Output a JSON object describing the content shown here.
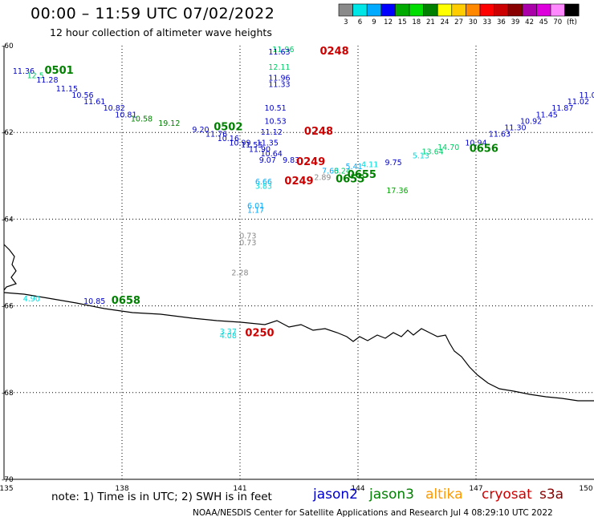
{
  "header": {
    "title": "00:00 – 11:59 UTC 07/02/2022",
    "subtitle": "12 hour collection of altimeter wave heights"
  },
  "legend": {
    "colors": [
      "#8a8a8a",
      "#00e5e5",
      "#00aaff",
      "#0000ff",
      "#00aa00",
      "#00dd00",
      "#008000",
      "#ffff00",
      "#ffcc00",
      "#ff8800",
      "#ff0000",
      "#cc0000",
      "#880000",
      "#aa00aa",
      "#dd00dd",
      "#ff88ff",
      "#000000"
    ],
    "labels": [
      "3",
      "6",
      "9",
      "12",
      "15",
      "18",
      "21",
      "24",
      "27",
      "30",
      "33",
      "36",
      "39",
      "42",
      "45",
      "70",
      "(ft)"
    ]
  },
  "footer": {
    "note": "note: 1) Time is in UTC; 2) SWH is in feet",
    "satellites": [
      {
        "name": "jason2",
        "color": "#0000cc"
      },
      {
        "name": "jason3",
        "color": "#008000"
      },
      {
        "name": "altika",
        "color": "#ff9900"
      },
      {
        "name": "cryosat",
        "color": "#cc0000"
      },
      {
        "name": "s3a",
        "color": "#880000"
      }
    ],
    "credit": "NOAA/NESDIS Center for Satellite Applications and Research  Jul  4 08:29:10 UTC 2022"
  },
  "map": {
    "lon_ticks": [
      "135",
      "138",
      "141",
      "144",
      "147",
      "150"
    ],
    "lat_ticks": [
      "-60",
      "-62",
      "-64",
      "-66",
      "-68",
      "-70"
    ],
    "lon_range": [
      135,
      150
    ],
    "lat_range": [
      -70,
      -60
    ]
  },
  "chart_data": {
    "type": "scatter",
    "title": "00:00 – 11:59 UTC 07/02/2022",
    "subtitle": "12 hour collection of altimeter wave heights",
    "unit": "ft",
    "points": [
      {
        "lon": 135.5,
        "lat": -60.65,
        "text": "11.36",
        "color": "#0000cc"
      },
      {
        "lon": 135.8,
        "lat": -60.75,
        "text": "12.5",
        "color": "#00cc66"
      },
      {
        "lon": 136.4,
        "lat": -60.65,
        "text": "0501",
        "color": "#008000",
        "time": true
      },
      {
        "lon": 136.1,
        "lat": -60.85,
        "text": "11.28",
        "color": "#0000cc"
      },
      {
        "lon": 136.6,
        "lat": -61.05,
        "text": "11.15",
        "color": "#0000cc"
      },
      {
        "lon": 137.0,
        "lat": -61.2,
        "text": "10.56",
        "color": "#0000cc"
      },
      {
        "lon": 137.3,
        "lat": -61.35,
        "text": "11.61",
        "color": "#0000cc"
      },
      {
        "lon": 137.8,
        "lat": -61.5,
        "text": "10.82",
        "color": "#0000cc"
      },
      {
        "lon": 138.1,
        "lat": -61.65,
        "text": "10.81",
        "color": "#0000cc"
      },
      {
        "lon": 138.5,
        "lat": -61.75,
        "text": "10.58",
        "color": "#008000"
      },
      {
        "lon": 139.2,
        "lat": -61.85,
        "text": "19.12",
        "color": "#008000"
      },
      {
        "lon": 140.0,
        "lat": -62.0,
        "text": "9.20",
        "color": "#0000cc"
      },
      {
        "lon": 140.7,
        "lat": -61.95,
        "text": "0502",
        "color": "#008000",
        "time": true
      },
      {
        "lon": 140.4,
        "lat": -62.1,
        "text": "11.76",
        "color": "#0000cc"
      },
      {
        "lon": 140.7,
        "lat": -62.2,
        "text": "10.16",
        "color": "#0000cc"
      },
      {
        "lon": 141.0,
        "lat": -62.3,
        "text": "10.99",
        "color": "#0000cc"
      },
      {
        "lon": 141.3,
        "lat": -62.35,
        "text": "11.55",
        "color": "#0000cc"
      },
      {
        "lon": 141.5,
        "lat": -62.45,
        "text": "11.90",
        "color": "#0000cc"
      },
      {
        "lon": 142.1,
        "lat": -60.15,
        "text": "11.96",
        "color": "#00cc66"
      },
      {
        "lon": 142.0,
        "lat": -60.2,
        "text": "11.63",
        "color": "#0000cc"
      },
      {
        "lon": 143.4,
        "lat": -60.2,
        "text": "0248",
        "color": "#cc0000",
        "time": true
      },
      {
        "lon": 142.0,
        "lat": -60.55,
        "text": "12.11",
        "color": "#00cc66"
      },
      {
        "lon": 142.0,
        "lat": -60.8,
        "text": "11.96",
        "color": "#0000cc"
      },
      {
        "lon": 142.0,
        "lat": -60.95,
        "text": "11.33",
        "color": "#0000cc"
      },
      {
        "lon": 141.9,
        "lat": -61.5,
        "text": "10.51",
        "color": "#0000cc"
      },
      {
        "lon": 141.9,
        "lat": -61.8,
        "text": "10.53",
        "color": "#0000cc"
      },
      {
        "lon": 141.8,
        "lat": -62.05,
        "text": "11.12",
        "color": "#0000cc"
      },
      {
        "lon": 143.0,
        "lat": -62.05,
        "text": "0248",
        "color": "#cc0000",
        "time": true
      },
      {
        "lon": 141.7,
        "lat": -62.3,
        "text": "11.35",
        "color": "#0000cc"
      },
      {
        "lon": 141.8,
        "lat": -62.55,
        "text": "10.64",
        "color": "#0000cc"
      },
      {
        "lon": 141.7,
        "lat": -62.7,
        "text": "9.07",
        "color": "#0000cc"
      },
      {
        "lon": 142.3,
        "lat": -62.7,
        "text": "9.83",
        "color": "#0000cc"
      },
      {
        "lon": 142.8,
        "lat": -62.75,
        "text": "0249",
        "color": "#cc0000",
        "time": true
      },
      {
        "lon": 141.6,
        "lat": -63.2,
        "text": "6.66",
        "color": "#00aaff"
      },
      {
        "lon": 141.6,
        "lat": -63.3,
        "text": "3.83",
        "color": "#00dddd"
      },
      {
        "lon": 142.5,
        "lat": -63.2,
        "text": "0249",
        "color": "#cc0000",
        "time": true
      },
      {
        "lon": 141.4,
        "lat": -63.75,
        "text": "6.01",
        "color": "#00aaff"
      },
      {
        "lon": 141.4,
        "lat": -63.85,
        "text": "1.17",
        "color": "#00aaff"
      },
      {
        "lon": 141.2,
        "lat": -64.45,
        "text": "0.73",
        "color": "#888888"
      },
      {
        "lon": 141.2,
        "lat": -64.6,
        "text": "0.73",
        "color": "#888888"
      },
      {
        "lon": 141.0,
        "lat": -65.3,
        "text": "2.28",
        "color": "#888888"
      },
      {
        "lon": 135.7,
        "lat": -65.9,
        "text": "4.90",
        "color": "#00dddd"
      },
      {
        "lon": 137.3,
        "lat": -65.95,
        "text": "10.85",
        "color": "#0000cc"
      },
      {
        "lon": 138.1,
        "lat": -65.95,
        "text": "0658",
        "color": "#008000",
        "time": true
      },
      {
        "lon": 140.7,
        "lat": -66.65,
        "text": "3.37",
        "color": "#00dddd"
      },
      {
        "lon": 140.7,
        "lat": -66.75,
        "text": "4.08",
        "color": "#00dddd"
      },
      {
        "lon": 141.5,
        "lat": -66.7,
        "text": "0250",
        "color": "#cc0000",
        "time": true
      },
      {
        "lon": 143.1,
        "lat": -63.1,
        "text": "2.89",
        "color": "#888888"
      },
      {
        "lon": 143.3,
        "lat": -62.95,
        "text": "7.63",
        "color": "#00aaff"
      },
      {
        "lon": 143.6,
        "lat": -62.95,
        "text": "6.24",
        "color": "#00cc66"
      },
      {
        "lon": 143.9,
        "lat": -62.85,
        "text": "5.41",
        "color": "#00aaff"
      },
      {
        "lon": 144.3,
        "lat": -62.8,
        "text": "4.11",
        "color": "#00dddd"
      },
      {
        "lon": 144.1,
        "lat": -63.05,
        "text": "0655",
        "color": "#008000",
        "time": true
      },
      {
        "lon": 143.8,
        "lat": -63.15,
        "text": "0655",
        "color": "#008000",
        "time": true
      },
      {
        "lon": 145.0,
        "lat": -63.4,
        "text": "17.36",
        "color": "#00aa00"
      },
      {
        "lon": 144.9,
        "lat": -62.75,
        "text": "9.75",
        "color": "#0000cc"
      },
      {
        "lon": 145.6,
        "lat": -62.6,
        "text": "5.13",
        "color": "#00dddd"
      },
      {
        "lon": 145.9,
        "lat": -62.5,
        "text": "13.64",
        "color": "#00cc66"
      },
      {
        "lon": 146.3,
        "lat": -62.4,
        "text": "14.70",
        "color": "#00cc66"
      },
      {
        "lon": 147.0,
        "lat": -62.3,
        "text": "10.94",
        "color": "#0000cc"
      },
      {
        "lon": 147.6,
        "lat": -62.1,
        "text": "11.63",
        "color": "#0000cc"
      },
      {
        "lon": 147.2,
        "lat": -62.45,
        "text": "0656",
        "color": "#008000",
        "time": true
      },
      {
        "lon": 148.0,
        "lat": -61.95,
        "text": "11.30",
        "color": "#0000cc"
      },
      {
        "lon": 148.4,
        "lat": -61.8,
        "text": "10.92",
        "color": "#0000cc"
      },
      {
        "lon": 148.8,
        "lat": -61.65,
        "text": "11.45",
        "color": "#0000cc"
      },
      {
        "lon": 149.2,
        "lat": -61.5,
        "text": "11.87",
        "color": "#0000cc"
      },
      {
        "lon": 149.6,
        "lat": -61.35,
        "text": "11.02",
        "color": "#0000cc"
      },
      {
        "lon": 149.9,
        "lat": -61.2,
        "text": "11.05",
        "color": "#0000cc"
      }
    ]
  }
}
